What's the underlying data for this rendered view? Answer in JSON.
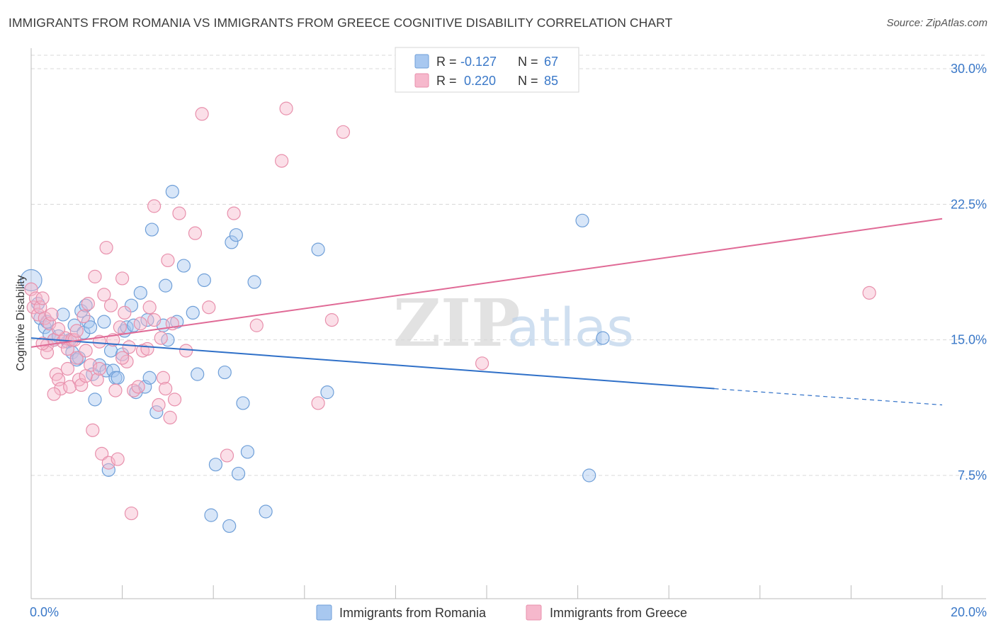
{
  "title": "IMMIGRANTS FROM ROMANIA VS IMMIGRANTS FROM GREECE COGNITIVE DISABILITY CORRELATION CHART",
  "source": "Source: ZipAtlas.com",
  "watermark": {
    "zip": "ZIP",
    "atlas": "atlas"
  },
  "colors": {
    "romania_fill": "#a8c8f0",
    "romania_stroke": "#6f9fd8",
    "romania_line": "#2f70c8",
    "greece_fill": "#f6b8cc",
    "greece_stroke": "#e890ac",
    "greece_line": "#e06a96",
    "tick_label": "#3a78c8",
    "grid": "#d8d8d8"
  },
  "legend": {
    "rows": [
      {
        "r_label": "R =",
        "r_value": "-0.127",
        "n_label": "N =",
        "n_value": "67"
      },
      {
        "r_label": "R =",
        "r_value": "0.220",
        "n_label": "N =",
        "n_value": "85"
      }
    ]
  },
  "chart_data": {
    "type": "scatter",
    "ylabel": "Cognitive Disability",
    "xlabel": "",
    "xlim": [
      0,
      20
    ],
    "ylim": [
      0,
      30.5
    ],
    "x_tick_labels": [
      "0.0%",
      "20.0%"
    ],
    "y_ticks": [
      7.5,
      15.0,
      22.5,
      30.0
    ],
    "y_tick_labels": [
      "7.5%",
      "15.0%",
      "22.5%",
      "30.0%"
    ],
    "grid": true,
    "legend_position": "bottom",
    "series": [
      {
        "name": "Immigrants from Romania",
        "r": -0.127,
        "n": 67,
        "trend": {
          "x0": 0,
          "y0": 15.1,
          "x1": 15.0,
          "y1": 12.3,
          "dash_to_x": 20.0,
          "dash_to_y": 11.4
        },
        "points": [
          [
            0.0,
            18.3
          ],
          [
            0.15,
            17.0
          ],
          [
            0.2,
            16.2
          ],
          [
            0.3,
            15.7
          ],
          [
            0.35,
            16.0
          ],
          [
            0.4,
            15.3
          ],
          [
            0.5,
            15.0
          ],
          [
            0.6,
            15.2
          ],
          [
            0.7,
            16.4
          ],
          [
            0.8,
            14.9
          ],
          [
            0.85,
            15.0
          ],
          [
            0.9,
            14.3
          ],
          [
            0.95,
            15.8
          ],
          [
            1.0,
            13.9
          ],
          [
            1.05,
            14.0
          ],
          [
            1.1,
            16.6
          ],
          [
            1.15,
            15.4
          ],
          [
            1.2,
            16.9
          ],
          [
            1.25,
            16.0
          ],
          [
            1.3,
            15.7
          ],
          [
            1.35,
            13.1
          ],
          [
            1.4,
            11.7
          ],
          [
            1.5,
            13.6
          ],
          [
            1.6,
            16.0
          ],
          [
            1.65,
            13.3
          ],
          [
            1.7,
            7.8
          ],
          [
            1.75,
            14.4
          ],
          [
            1.8,
            13.3
          ],
          [
            1.85,
            12.9
          ],
          [
            1.9,
            12.9
          ],
          [
            2.0,
            14.2
          ],
          [
            2.05,
            15.5
          ],
          [
            2.1,
            15.7
          ],
          [
            2.2,
            16.9
          ],
          [
            2.25,
            15.8
          ],
          [
            2.3,
            12.1
          ],
          [
            2.4,
            17.6
          ],
          [
            2.5,
            12.4
          ],
          [
            2.55,
            16.1
          ],
          [
            2.6,
            12.9
          ],
          [
            2.65,
            21.1
          ],
          [
            2.75,
            11.0
          ],
          [
            2.9,
            15.8
          ],
          [
            2.95,
            18.0
          ],
          [
            3.0,
            15.0
          ],
          [
            3.1,
            23.2
          ],
          [
            3.2,
            16.0
          ],
          [
            3.35,
            19.1
          ],
          [
            3.55,
            16.5
          ],
          [
            3.65,
            13.1
          ],
          [
            3.8,
            18.3
          ],
          [
            3.95,
            5.3
          ],
          [
            4.05,
            8.1
          ],
          [
            4.25,
            13.2
          ],
          [
            4.35,
            4.7
          ],
          [
            4.4,
            20.4
          ],
          [
            4.5,
            20.8
          ],
          [
            4.55,
            7.6
          ],
          [
            4.65,
            11.5
          ],
          [
            4.75,
            8.8
          ],
          [
            4.9,
            18.2
          ],
          [
            5.15,
            5.5
          ],
          [
            6.3,
            20.0
          ],
          [
            6.5,
            12.1
          ],
          [
            12.1,
            21.6
          ],
          [
            12.55,
            15.1
          ],
          [
            12.25,
            7.5
          ]
        ]
      },
      {
        "name": "Immigrants from Greece",
        "r": 0.22,
        "n": 85,
        "trend": {
          "x0": 0,
          "y0": 14.6,
          "x1": 20.0,
          "y1": 21.7
        },
        "points": [
          [
            0.0,
            17.8
          ],
          [
            0.05,
            16.8
          ],
          [
            0.1,
            17.3
          ],
          [
            0.15,
            16.4
          ],
          [
            0.2,
            16.8
          ],
          [
            0.25,
            17.3
          ],
          [
            0.3,
            16.2
          ],
          [
            0.35,
            14.7
          ],
          [
            0.35,
            14.3
          ],
          [
            0.4,
            15.9
          ],
          [
            0.45,
            16.4
          ],
          [
            0.5,
            15.0
          ],
          [
            0.55,
            13.1
          ],
          [
            0.6,
            12.8
          ],
          [
            0.65,
            12.3
          ],
          [
            0.7,
            14.9
          ],
          [
            0.75,
            15.1
          ],
          [
            0.8,
            14.5
          ],
          [
            0.85,
            12.4
          ],
          [
            0.9,
            15.0
          ],
          [
            0.95,
            15.0
          ],
          [
            1.0,
            14.0
          ],
          [
            1.05,
            12.8
          ],
          [
            1.1,
            12.5
          ],
          [
            1.15,
            16.3
          ],
          [
            1.2,
            14.4
          ],
          [
            1.25,
            17.0
          ],
          [
            1.3,
            13.6
          ],
          [
            1.35,
            10.0
          ],
          [
            1.4,
            18.5
          ],
          [
            1.45,
            12.8
          ],
          [
            1.5,
            13.4
          ],
          [
            1.55,
            8.7
          ],
          [
            1.6,
            17.5
          ],
          [
            1.65,
            20.1
          ],
          [
            1.7,
            8.2
          ],
          [
            1.75,
            16.9
          ],
          [
            1.8,
            15.0
          ],
          [
            1.85,
            12.2
          ],
          [
            1.9,
            8.4
          ],
          [
            1.95,
            15.7
          ],
          [
            2.0,
            18.4
          ],
          [
            2.05,
            16.5
          ],
          [
            2.1,
            13.8
          ],
          [
            2.15,
            14.6
          ],
          [
            2.2,
            5.4
          ],
          [
            2.25,
            12.2
          ],
          [
            2.35,
            12.4
          ],
          [
            2.45,
            14.4
          ],
          [
            2.55,
            14.5
          ],
          [
            2.6,
            16.8
          ],
          [
            2.7,
            16.1
          ],
          [
            2.7,
            22.4
          ],
          [
            2.8,
            11.4
          ],
          [
            2.85,
            15.1
          ],
          [
            2.9,
            12.9
          ],
          [
            2.95,
            12.3
          ],
          [
            3.0,
            19.4
          ],
          [
            3.05,
            10.7
          ],
          [
            3.1,
            15.9
          ],
          [
            3.15,
            11.7
          ],
          [
            3.25,
            22.0
          ],
          [
            3.4,
            14.4
          ],
          [
            3.6,
            20.9
          ],
          [
            3.75,
            27.5
          ],
          [
            4.3,
            8.6
          ],
          [
            4.45,
            22.0
          ],
          [
            4.95,
            15.8
          ],
          [
            5.5,
            24.9
          ],
          [
            5.6,
            27.8
          ],
          [
            6.3,
            11.5
          ],
          [
            6.6,
            16.1
          ],
          [
            6.85,
            26.5
          ],
          [
            9.9,
            13.7
          ],
          [
            18.4,
            17.6
          ],
          [
            0.5,
            12.0
          ],
          [
            1.0,
            15.5
          ],
          [
            1.5,
            14.9
          ],
          [
            2.0,
            14.0
          ],
          [
            0.25,
            14.8
          ],
          [
            3.9,
            16.8
          ],
          [
            0.8,
            13.4
          ],
          [
            1.2,
            13.0
          ],
          [
            2.4,
            15.9
          ],
          [
            0.6,
            15.6
          ]
        ]
      }
    ]
  }
}
